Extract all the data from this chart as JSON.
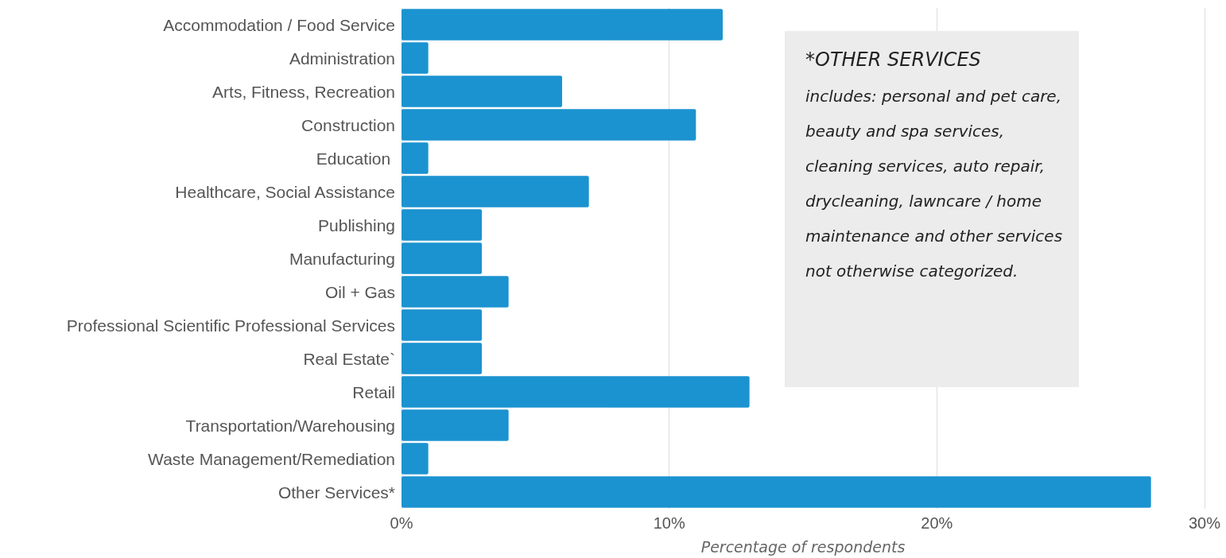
{
  "chart_data": {
    "type": "bar",
    "orientation": "horizontal",
    "categories": [
      "Accommodation / Food Service",
      "Administration",
      "Arts, Fitness, Recreation",
      "Construction",
      "Education ",
      "Healthcare, Social Assistance",
      "Publishing",
      "Manufacturing",
      "Oil + Gas",
      "Professional Scientific Professional Services",
      "Real Estate`",
      "Retail",
      "Transportation/Warehousing",
      "Waste Management/Remediation",
      "Other Services*"
    ],
    "values": [
      12,
      1,
      6,
      11,
      1,
      7,
      3,
      3,
      4,
      3,
      3,
      13,
      4,
      1,
      28
    ],
    "color": "#1b93d0",
    "xlabel": "Percentage of respondents",
    "xlim": [
      0,
      30
    ],
    "xticks": [
      {
        "value": 0,
        "label": "0%"
      },
      {
        "value": 10,
        "label": "10%"
      },
      {
        "value": 20,
        "label": "20%"
      },
      {
        "value": 30,
        "label": "30%"
      }
    ],
    "grid": "x",
    "annotations": [
      "*OTHER SERVICES",
      "includes: personal and pet care, beauty and spa services, cleaning services, auto repair, drycleaning, lawncare / home maintenance and other services not otherwise categorized."
    ]
  }
}
